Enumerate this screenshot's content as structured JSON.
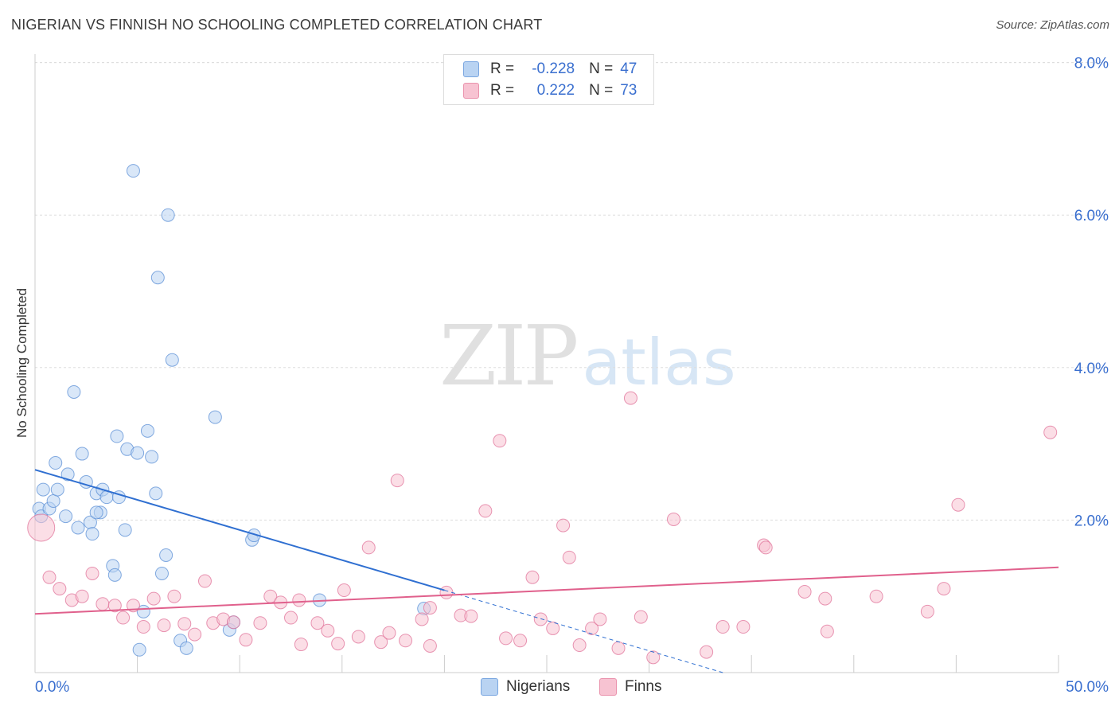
{
  "title": "NIGERIAN VS FINNISH NO SCHOOLING COMPLETED CORRELATION CHART",
  "source": "Source: ZipAtlas.com",
  "watermark": {
    "zip": "ZIP",
    "atlas": "atlas"
  },
  "legend": {
    "rows": [
      {
        "r_label": "R =",
        "r_value": "-0.228",
        "n_label": "N =",
        "n_value": "47",
        "color": "#a8c8f0"
      },
      {
        "r_label": "R =",
        "r_value": "0.222",
        "n_label": "N =",
        "n_value": "73",
        "color": "#f5b8c8"
      }
    ]
  },
  "bottom_legend": {
    "nigerians": "Nigerians",
    "finns": "Finns"
  },
  "chart_data": {
    "type": "scatter",
    "title": "NIGERIAN VS FINNISH NO SCHOOLING COMPLETED CORRELATION CHART",
    "xlabel": "",
    "ylabel": "No Schooling Completed",
    "xlim": [
      0,
      50
    ],
    "ylim": [
      0,
      8
    ],
    "x_tick_labels": [
      "0.0%",
      "50.0%"
    ],
    "y_ticks": [
      2,
      4,
      6,
      8
    ],
    "y_tick_labels": [
      "2.0%",
      "4.0%",
      "6.0%",
      "8.0%"
    ],
    "grid": true,
    "series": [
      {
        "name": "Nigerians",
        "color": "#5b8fd6",
        "fill": "#b9d3f2",
        "r": -0.228,
        "n": 47,
        "trend": {
          "x0": 0,
          "y0": 2.66,
          "x1": 20,
          "y1": 1.08,
          "dash_x1": 33.6,
          "dash_y1": 0.0
        },
        "points": [
          [
            0.2,
            2.15
          ],
          [
            0.4,
            2.4
          ],
          [
            0.3,
            2.05
          ],
          [
            0.7,
            2.15
          ],
          [
            0.9,
            2.25
          ],
          [
            1.0,
            2.75
          ],
          [
            1.1,
            2.4
          ],
          [
            1.6,
            2.6
          ],
          [
            1.9,
            3.68
          ],
          [
            1.5,
            2.05
          ],
          [
            2.1,
            1.9
          ],
          [
            2.3,
            2.87
          ],
          [
            2.5,
            2.5
          ],
          [
            2.7,
            1.97
          ],
          [
            2.8,
            1.82
          ],
          [
            3.0,
            2.35
          ],
          [
            3.2,
            2.1
          ],
          [
            3.3,
            2.4
          ],
          [
            3.5,
            2.3
          ],
          [
            3.8,
            1.4
          ],
          [
            3.9,
            1.28
          ],
          [
            4.0,
            3.1
          ],
          [
            4.1,
            2.3
          ],
          [
            4.4,
            1.87
          ],
          [
            4.5,
            2.93
          ],
          [
            4.8,
            6.58
          ],
          [
            5.0,
            2.88
          ],
          [
            5.3,
            0.8
          ],
          [
            5.5,
            3.17
          ],
          [
            5.7,
            2.83
          ],
          [
            5.9,
            2.35
          ],
          [
            6.0,
            5.18
          ],
          [
            6.2,
            1.3
          ],
          [
            6.4,
            1.54
          ],
          [
            6.5,
            6.0
          ],
          [
            6.7,
            4.1
          ],
          [
            7.1,
            0.42
          ],
          [
            7.4,
            0.32
          ],
          [
            8.8,
            3.35
          ],
          [
            9.5,
            0.56
          ],
          [
            9.7,
            0.66
          ],
          [
            10.6,
            1.74
          ],
          [
            10.7,
            1.8
          ],
          [
            13.9,
            0.95
          ],
          [
            19.0,
            0.84
          ],
          [
            5.1,
            0.3
          ],
          [
            3.0,
            2.1
          ]
        ]
      },
      {
        "name": "Finns",
        "color": "#e07399",
        "fill": "#f7c3d2",
        "r": 0.222,
        "n": 73,
        "trend": {
          "x0": 0,
          "y0": 0.77,
          "x1": 50,
          "y1": 1.38
        },
        "points": [
          [
            0.3,
            1.9
          ],
          [
            0.7,
            1.25
          ],
          [
            1.2,
            1.1
          ],
          [
            1.8,
            0.95
          ],
          [
            2.3,
            1.0
          ],
          [
            2.8,
            1.3
          ],
          [
            3.3,
            0.9
          ],
          [
            3.9,
            0.88
          ],
          [
            4.3,
            0.72
          ],
          [
            4.8,
            0.88
          ],
          [
            5.3,
            0.6
          ],
          [
            5.8,
            0.97
          ],
          [
            6.3,
            0.62
          ],
          [
            6.8,
            1.0
          ],
          [
            7.3,
            0.64
          ],
          [
            7.8,
            0.5
          ],
          [
            8.3,
            1.2
          ],
          [
            8.7,
            0.65
          ],
          [
            9.2,
            0.7
          ],
          [
            9.7,
            0.66
          ],
          [
            10.3,
            0.43
          ],
          [
            11.0,
            0.65
          ],
          [
            11.5,
            1.0
          ],
          [
            12.0,
            0.92
          ],
          [
            12.5,
            0.72
          ],
          [
            12.9,
            0.95
          ],
          [
            13.0,
            0.37
          ],
          [
            13.8,
            0.65
          ],
          [
            14.3,
            0.55
          ],
          [
            14.8,
            0.38
          ],
          [
            15.1,
            1.08
          ],
          [
            15.8,
            0.47
          ],
          [
            16.3,
            1.64
          ],
          [
            16.9,
            0.4
          ],
          [
            17.3,
            0.52
          ],
          [
            17.7,
            2.52
          ],
          [
            18.1,
            0.42
          ],
          [
            18.9,
            0.7
          ],
          [
            19.3,
            0.85
          ],
          [
            19.3,
            0.35
          ],
          [
            20.1,
            1.05
          ],
          [
            20.8,
            0.75
          ],
          [
            21.3,
            0.74
          ],
          [
            22.0,
            2.12
          ],
          [
            22.7,
            3.04
          ],
          [
            23.0,
            0.45
          ],
          [
            23.7,
            0.42
          ],
          [
            24.3,
            1.25
          ],
          [
            24.7,
            0.7
          ],
          [
            25.3,
            0.58
          ],
          [
            25.8,
            1.93
          ],
          [
            26.1,
            1.51
          ],
          [
            26.6,
            0.36
          ],
          [
            27.2,
            0.58
          ],
          [
            27.6,
            0.7
          ],
          [
            28.5,
            0.32
          ],
          [
            29.1,
            3.6
          ],
          [
            29.6,
            0.73
          ],
          [
            30.2,
            0.2
          ],
          [
            31.2,
            2.01
          ],
          [
            32.8,
            0.27
          ],
          [
            33.6,
            0.6
          ],
          [
            34.6,
            0.6
          ],
          [
            35.6,
            1.67
          ],
          [
            35.7,
            1.64
          ],
          [
            37.6,
            1.06
          ],
          [
            38.6,
            0.97
          ],
          [
            38.7,
            0.54
          ],
          [
            41.1,
            1.0
          ],
          [
            43.6,
            0.8
          ],
          [
            44.4,
            1.1
          ],
          [
            45.1,
            2.2
          ],
          [
            49.6,
            3.15
          ]
        ]
      }
    ]
  }
}
